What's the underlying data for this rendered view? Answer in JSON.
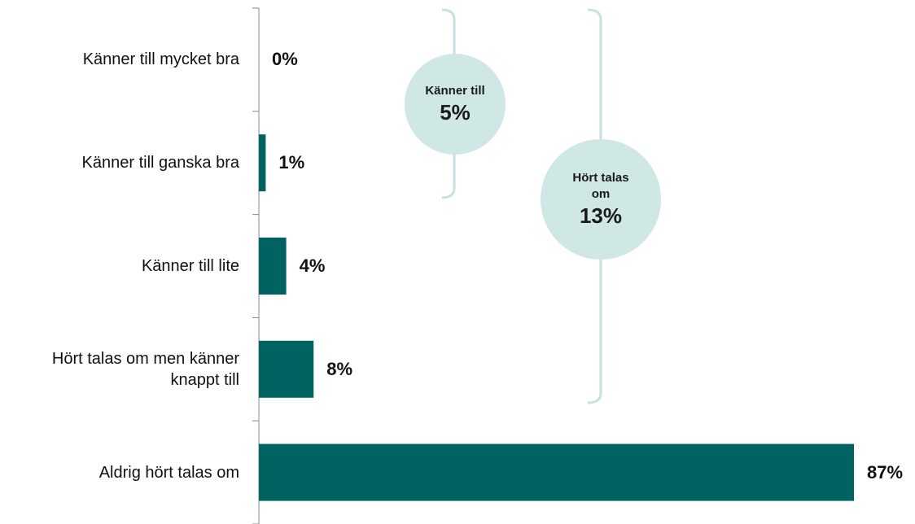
{
  "chart_data": {
    "type": "barh",
    "categories": [
      "Känner till mycket bra",
      "Känner till ganska bra",
      "Känner till lite",
      "Hört talas om men känner knappt till",
      "Aldrig hört talas om"
    ],
    "values": [
      0,
      1,
      4,
      8,
      87
    ],
    "value_labels": [
      "0%",
      "1%",
      "4%",
      "8%",
      "87%"
    ],
    "color": "#006361",
    "xlim": [
      0,
      87
    ],
    "annotations": [
      {
        "text": "Känner till",
        "label": "5%"
      },
      {
        "text": "Hört talas om",
        "label": "13%"
      }
    ]
  }
}
